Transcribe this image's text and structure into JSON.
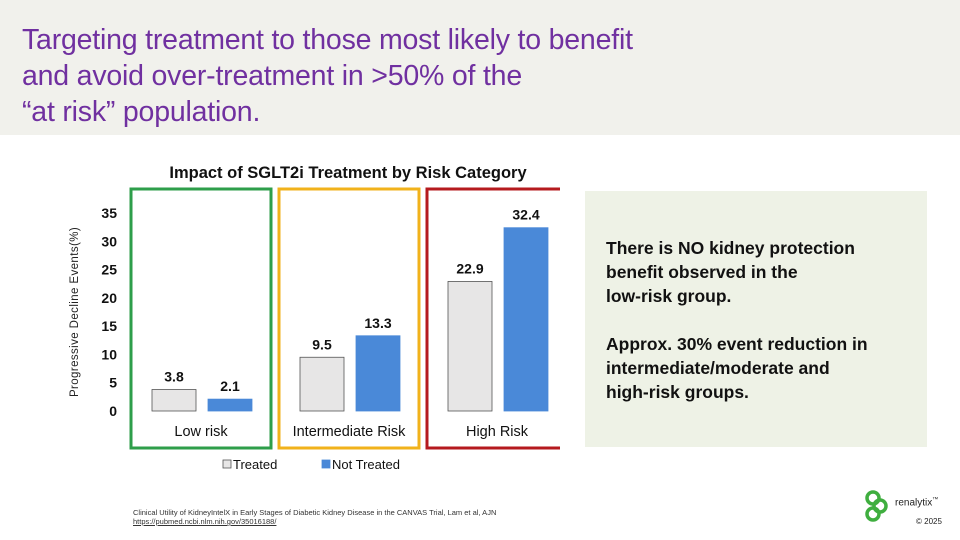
{
  "slide": {
    "title_lines": [
      "Targeting treatment to those most likely to benefit",
      "and avoid over-treatment in >50% of the",
      "“at risk” population."
    ]
  },
  "chart_data": {
    "type": "bar",
    "title": "Impact of SGLT2i Treatment by Risk Category",
    "ylabel": "Progressive Decline Events(%)",
    "xlabel": "",
    "ylim": [
      0,
      35
    ],
    "yticks": [
      "0",
      "5",
      "10",
      "15",
      "20",
      "25",
      "30",
      "35"
    ],
    "categories": [
      "Low risk",
      "Intermediate Risk",
      "High Risk"
    ],
    "category_frame_colors": [
      "#2e9e4a",
      "#f1b21b",
      "#b51a1e"
    ],
    "series": [
      {
        "name": "Treated",
        "color": "#e7e6e6",
        "values": [
          3.8,
          9.5,
          22.9
        ],
        "labels": [
          "3.8",
          "9.5",
          "22.9"
        ]
      },
      {
        "name": "Not Treated",
        "color": "#4a89d8",
        "values": [
          2.1,
          13.3,
          32.4
        ],
        "labels": [
          "2.1",
          "13.3",
          "32.4"
        ]
      }
    ],
    "legend_position": "bottom",
    "grid": false
  },
  "callout": {
    "paragraph1": [
      "There is NO kidney protection",
      "benefit observed in the",
      "low-risk group."
    ],
    "paragraph2": [
      "Approx. 30% event reduction in",
      "intermediate/moderate and",
      "high-risk groups."
    ]
  },
  "citation": {
    "text": "Clinical Utility of KidneyIntelX in Early Stages of Diabetic Kidney Disease in the CANVAS Trial, Lam et al, AJN",
    "url": "https://pubmed.ncbi.nlm.nih.gov/35016188/"
  },
  "brand": {
    "name": "renalytix",
    "trademark": "™",
    "copyright": "© 2025",
    "logo_color": "#3fae3f"
  }
}
